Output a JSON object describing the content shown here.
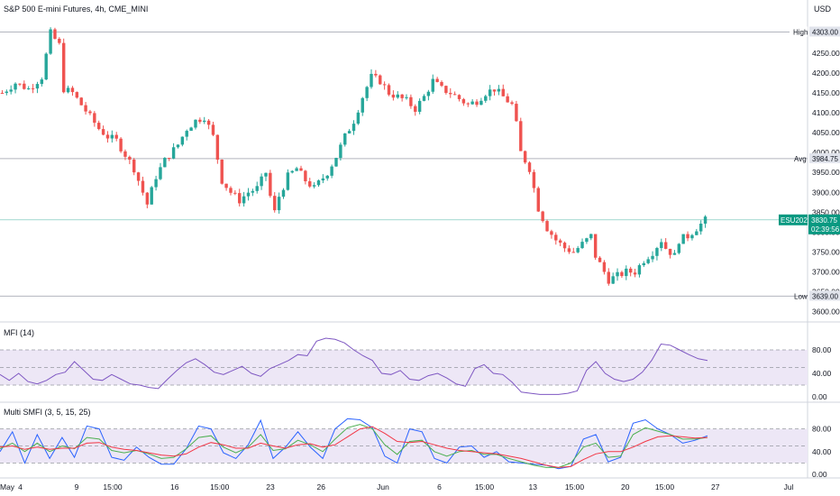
{
  "header": {
    "title": "S&P 500 E-mini Futures, 4h, CME_MINI",
    "currency": "USD"
  },
  "colors": {
    "up": "#26a69a",
    "down": "#ef5350",
    "mfi": "#7e57c2",
    "band": "#ede7f6",
    "smfi_fast": "#2962ff",
    "smfi_mid": "#4caf50",
    "smfi_slow": "#f23645",
    "price_line": "#089981"
  },
  "tags": {
    "high": {
      "label": "High",
      "value": "4303.00"
    },
    "avg": {
      "label": "Avg",
      "value": "3984.75"
    },
    "low": {
      "label": "Low",
      "value": "3639.00"
    },
    "symbol": {
      "label": "ESU2022",
      "value": "3830.75",
      "countdown": "02:39:56"
    }
  },
  "chart_data": [
    {
      "type": "candlestick",
      "y_ticks": [
        "4250.00",
        "4200.00",
        "4150.00",
        "4100.00",
        "4050.00",
        "4000.00",
        "3950.00",
        "3900.00",
        "3850.00",
        "3800.00",
        "3750.00",
        "3700.00",
        "3650.00",
        "3600.00"
      ],
      "ylim": [
        3590,
        4320
      ],
      "high": 4303.0,
      "avg": 3984.75,
      "low": 3639.0,
      "last": 3830.75,
      "path": [
        [
          0,
          4150
        ],
        [
          3,
          4175
        ],
        [
          6,
          4160
        ],
        [
          9,
          4190
        ],
        [
          11,
          4300
        ],
        [
          13,
          4270
        ],
        [
          14,
          4160
        ],
        [
          16,
          4150
        ],
        [
          18,
          4120
        ],
        [
          20,
          4090
        ],
        [
          22,
          4060
        ],
        [
          24,
          4040
        ],
        [
          26,
          4030
        ],
        [
          28,
          3995
        ],
        [
          30,
          3960
        ],
        [
          32,
          3900
        ],
        [
          33,
          3870
        ],
        [
          35,
          3940
        ],
        [
          37,
          3980
        ],
        [
          40,
          4020
        ],
        [
          42,
          4060
        ],
        [
          44,
          4080
        ],
        [
          46,
          4090
        ],
        [
          48,
          4040
        ],
        [
          50,
          3930
        ],
        [
          52,
          3900
        ],
        [
          54,
          3880
        ],
        [
          56,
          3900
        ],
        [
          58,
          3910
        ],
        [
          60,
          3950
        ],
        [
          61,
          3890
        ],
        [
          62,
          3850
        ],
        [
          63,
          3890
        ],
        [
          65,
          3940
        ],
        [
          67,
          3960
        ],
        [
          69,
          3930
        ],
        [
          71,
          3910
        ],
        [
          74,
          3950
        ],
        [
          76,
          3990
        ],
        [
          78,
          4040
        ],
        [
          80,
          4080
        ],
        [
          82,
          4140
        ],
        [
          84,
          4190
        ],
        [
          86,
          4180
        ],
        [
          88,
          4150
        ],
        [
          90,
          4140
        ],
        [
          92,
          4130
        ],
        [
          94,
          4110
        ],
        [
          96,
          4140
        ],
        [
          98,
          4180
        ],
        [
          100,
          4160
        ],
        [
          102,
          4150
        ],
        [
          104,
          4135
        ],
        [
          106,
          4120
        ],
        [
          108,
          4130
        ],
        [
          110,
          4150
        ],
        [
          112,
          4160
        ],
        [
          114,
          4140
        ],
        [
          116,
          4120
        ],
        [
          117,
          4070
        ],
        [
          118,
          4000
        ],
        [
          120,
          3960
        ],
        [
          121,
          3910
        ],
        [
          122,
          3860
        ],
        [
          124,
          3810
        ],
        [
          126,
          3780
        ],
        [
          128,
          3760
        ],
        [
          130,
          3750
        ],
        [
          132,
          3770
        ],
        [
          134,
          3790
        ],
        [
          135,
          3740
        ],
        [
          137,
          3700
        ],
        [
          138,
          3680
        ],
        [
          140,
          3690
        ],
        [
          142,
          3700
        ],
        [
          144,
          3700
        ],
        [
          146,
          3730
        ],
        [
          148,
          3750
        ],
        [
          150,
          3780
        ],
        [
          151,
          3760
        ],
        [
          153,
          3740
        ],
        [
          154,
          3780
        ],
        [
          156,
          3790
        ],
        [
          158,
          3810
        ],
        [
          160,
          3830
        ]
      ],
      "n_candles": 161
    },
    {
      "type": "line",
      "title": "MFI (14)",
      "y_ticks": [
        "80.00",
        "40.00",
        "0.00"
      ],
      "ylim": [
        0,
        100
      ],
      "bands": [
        20,
        50,
        80
      ],
      "values": [
        38,
        28,
        40,
        26,
        22,
        28,
        38,
        42,
        60,
        45,
        30,
        28,
        38,
        30,
        22,
        20,
        16,
        14,
        30,
        45,
        58,
        65,
        55,
        42,
        38,
        45,
        52,
        40,
        35,
        48,
        55,
        62,
        72,
        70,
        95,
        100,
        98,
        92,
        80,
        70,
        62,
        40,
        38,
        45,
        30,
        28,
        36,
        40,
        32,
        22,
        18,
        48,
        55,
        40,
        38,
        25,
        8,
        6,
        4,
        4,
        4,
        6,
        10,
        45,
        60,
        40,
        30,
        26,
        30,
        42,
        62,
        90,
        88,
        80,
        72,
        65,
        62
      ]
    },
    {
      "type": "line",
      "title": "Multi SMFI (3, 5, 15, 25)",
      "y_ticks": [
        "80.00",
        "40.00",
        "0.00"
      ],
      "ylim": [
        0,
        100
      ],
      "bands": [
        20,
        50,
        80
      ],
      "series": [
        {
          "name": "fast",
          "values": [
            40,
            75,
            20,
            70,
            28,
            65,
            30,
            85,
            80,
            30,
            25,
            48,
            30,
            18,
            18,
            45,
            85,
            80,
            38,
            28,
            52,
            95,
            28,
            48,
            75,
            48,
            28,
            80,
            98,
            96,
            82,
            32,
            20,
            80,
            75,
            28,
            20,
            48,
            50,
            30,
            40,
            22,
            20,
            18,
            16,
            10,
            14,
            62,
            70,
            22,
            30,
            90,
            96,
            80,
            70,
            55,
            60,
            68
          ]
        },
        {
          "name": "mid",
          "values": [
            45,
            55,
            40,
            55,
            40,
            50,
            45,
            65,
            62,
            42,
            38,
            42,
            36,
            28,
            30,
            45,
            65,
            68,
            48,
            38,
            48,
            70,
            42,
            45,
            60,
            52,
            40,
            62,
            82,
            88,
            80,
            52,
            35,
            58,
            60,
            40,
            32,
            40,
            42,
            35,
            35,
            28,
            22,
            16,
            12,
            12,
            20,
            48,
            55,
            30,
            32,
            70,
            82,
            76,
            70,
            62,
            62,
            65
          ]
        },
        {
          "name": "slow",
          "values": [
            48,
            50,
            44,
            48,
            44,
            46,
            46,
            55,
            56,
            48,
            44,
            42,
            38,
            34,
            32,
            36,
            48,
            56,
            52,
            46,
            46,
            55,
            50,
            46,
            52,
            54,
            48,
            52,
            66,
            80,
            84,
            72,
            58,
            56,
            58,
            52,
            46,
            42,
            40,
            38,
            36,
            32,
            28,
            22,
            16,
            12,
            14,
            26,
            36,
            40,
            40,
            48,
            58,
            66,
            68,
            66,
            64,
            65
          ]
        }
      ]
    }
  ],
  "x_ticks": [
    "May",
    "4",
    "9",
    "15:00",
    "16",
    "15:00",
    "23",
    "26",
    "Jun",
    "6",
    "15:00",
    "13",
    "15:00",
    "20",
    "15:00",
    "27",
    "Jul"
  ],
  "x_tick_pos": [
    0.0,
    0.018,
    0.068,
    0.1,
    0.155,
    0.195,
    0.24,
    0.285,
    0.34,
    0.39,
    0.43,
    0.473,
    0.51,
    0.555,
    0.59,
    0.635,
    0.7
  ]
}
